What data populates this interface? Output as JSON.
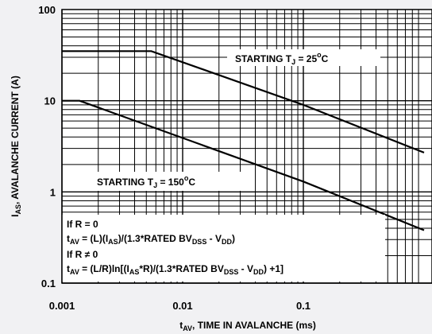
{
  "chart_data": {
    "type": "line",
    "xscale": "log",
    "yscale": "log",
    "xlim": [
      0.001,
      1
    ],
    "ylim": [
      0.1,
      100
    ],
    "grid": true,
    "x_ticks": [
      "0.001",
      "0.01",
      "0.1"
    ],
    "y_ticks": [
      "100",
      "10",
      "1",
      "0.1"
    ],
    "xlabel": {
      "main": "t",
      "sub": "AV",
      "rest": ", TIME IN AVALANCHE (ms)"
    },
    "ylabel": {
      "main": "I",
      "sub": "AS",
      "rest": ", AVALANCHE CURRENT (A)"
    },
    "series": [
      {
        "label": {
          "prefix": "STARTING T",
          "sub": "J",
          "value": " = 25",
          "sup": "o",
          "unit": "C"
        },
        "x": [
          0.001,
          0.0055,
          0.1,
          1
        ],
        "y": [
          35,
          35,
          9,
          2.7
        ]
      },
      {
        "label": {
          "prefix": "STARTING T",
          "sub": "J",
          "value": " = 150",
          "sup": "o",
          "unit": "C"
        },
        "x": [
          0.001,
          0.0014,
          0.1,
          1
        ],
        "y": [
          10,
          10,
          1.3,
          0.38
        ]
      }
    ],
    "equations": {
      "line1": "If R = 0",
      "line2": {
        "t": "t",
        "t_sub": "AV",
        "a": " = (L)(I",
        "a_sub": "AS",
        "b": ")/(1.3*RATED BV",
        "b_sub": "DSS",
        "c": " - V",
        "c_sub": "DD",
        "d": ")"
      },
      "line3": {
        "text": "If R ",
        "neq": "≠",
        "rest": " 0"
      },
      "line4": {
        "t": "t",
        "t_sub": "AV",
        "a": " = (L/R)ln[(I",
        "a_sub": "AS",
        "b": "*R)/(1.3*RATED BV",
        "b_sub": "DSS",
        "c": " - V",
        "c_sub": "DD",
        "d": ") +1]"
      }
    }
  }
}
